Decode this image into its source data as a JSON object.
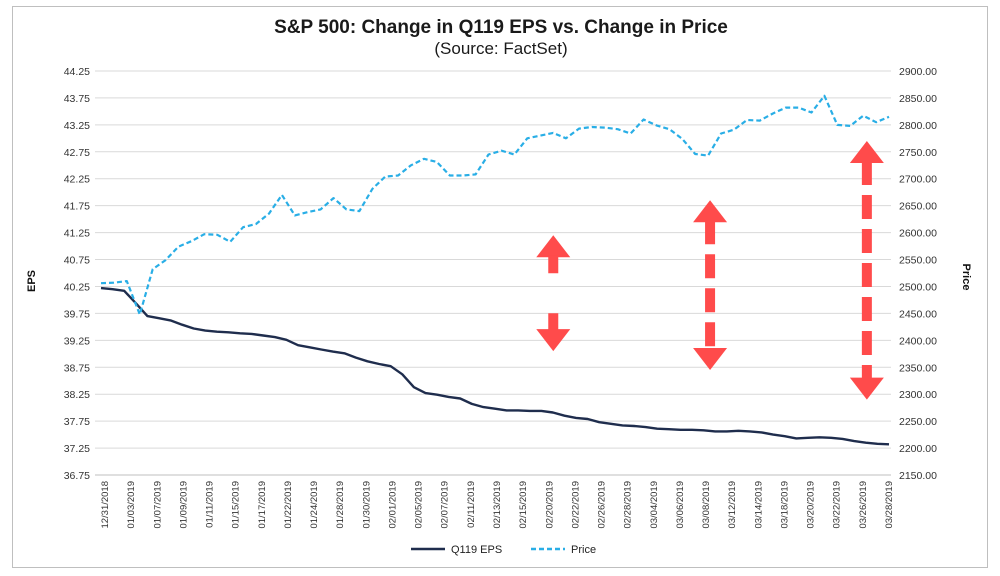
{
  "chart_data": {
    "type": "line",
    "title": "S&P 500: Change in Q119 EPS vs. Change in Price",
    "subtitle": "(Source: FactSet)",
    "ylabel": "EPS",
    "y2label": "Price",
    "ylim": [
      36.75,
      44.25
    ],
    "y2lim": [
      2150,
      2900
    ],
    "y_ticks": [
      "44.25",
      "43.75",
      "43.25",
      "42.75",
      "42.25",
      "41.75",
      "41.25",
      "40.75",
      "40.25",
      "39.75",
      "39.25",
      "38.75",
      "38.25",
      "37.75",
      "37.25",
      "36.75"
    ],
    "y2_ticks": [
      "2900.00",
      "2850.00",
      "2800.00",
      "2750.00",
      "2700.00",
      "2650.00",
      "2600.00",
      "2550.00",
      "2500.00",
      "2450.00",
      "2400.00",
      "2350.00",
      "2300.00",
      "2250.00",
      "2200.00",
      "2150.00"
    ],
    "x_tick_labels": [
      "12/31/2018",
      "01/03/2019",
      "01/07/2019",
      "01/09/2019",
      "01/11/2019",
      "01/15/2019",
      "01/17/2019",
      "01/22/2019",
      "01/24/2019",
      "01/28/2019",
      "01/30/2019",
      "02/01/2019",
      "02/05/2019",
      "02/07/2019",
      "02/11/2019",
      "02/13/2019",
      "02/15/2019",
      "02/20/2019",
      "02/22/2019",
      "02/26/2019",
      "02/28/2019",
      "03/04/2019",
      "03/06/2019",
      "03/08/2019",
      "03/12/2019",
      "03/14/2019",
      "03/18/2019",
      "03/20/2019",
      "03/22/2019",
      "03/26/2019",
      "03/28/2019"
    ],
    "grid": true,
    "legend_position": "bottom",
    "series": [
      {
        "name": "Q119 EPS",
        "axis": "left",
        "style": "solid",
        "color": "#1f2d4d",
        "values": [
          40.22,
          40.2,
          40.17,
          39.94,
          39.7,
          39.66,
          39.62,
          39.54,
          39.47,
          39.43,
          39.41,
          39.4,
          39.38,
          39.37,
          39.34,
          39.31,
          39.26,
          39.16,
          39.12,
          39.08,
          39.04,
          39.01,
          38.93,
          38.86,
          38.81,
          38.77,
          38.62,
          38.38,
          38.27,
          38.24,
          38.2,
          38.17,
          38.07,
          38.01,
          37.98,
          37.95,
          37.95,
          37.94,
          37.94,
          37.91,
          37.85,
          37.81,
          37.79,
          37.73,
          37.7,
          37.67,
          37.66,
          37.64,
          37.61,
          37.6,
          37.59,
          37.59,
          37.58,
          37.56,
          37.56,
          37.57,
          37.56,
          37.54,
          37.5,
          37.47,
          37.43,
          37.44,
          37.45,
          37.44,
          37.42,
          37.38,
          37.35,
          37.33,
          37.32
        ]
      },
      {
        "name": "Price",
        "axis": "right",
        "style": "dashed",
        "color": "#29aee6",
        "values": [
          2506,
          2507,
          2510,
          2448,
          2532,
          2549,
          2574,
          2584,
          2597,
          2596,
          2583,
          2610,
          2616,
          2635,
          2670,
          2632,
          2638,
          2643,
          2664,
          2643,
          2640,
          2681,
          2704,
          2706,
          2725,
          2737,
          2731,
          2706,
          2706,
          2708,
          2745,
          2752,
          2745,
          2775,
          2780,
          2785,
          2775,
          2793,
          2796,
          2795,
          2792,
          2784,
          2810,
          2799,
          2792,
          2774,
          2746,
          2743,
          2784,
          2791,
          2809,
          2808,
          2821,
          2832,
          2832,
          2823,
          2854,
          2800,
          2798,
          2817,
          2805,
          2815
        ]
      }
    ],
    "annotations": [
      {
        "type": "double-arrow",
        "style": "solid",
        "color": "#ff4b4b",
        "from_x_label": "02/20/2019",
        "top_price": 2595,
        "bottom_price": 2380
      },
      {
        "type": "double-arrow",
        "style": "dashed",
        "color": "#ff4b4b",
        "from_x_label": "03/08/2019",
        "top_price": 2660,
        "bottom_price": 2345
      },
      {
        "type": "double-arrow",
        "style": "dashed",
        "color": "#ff4b4b",
        "from_x_label": "03/26/2019",
        "top_price": 2770,
        "bottom_price": 2290
      }
    ]
  }
}
